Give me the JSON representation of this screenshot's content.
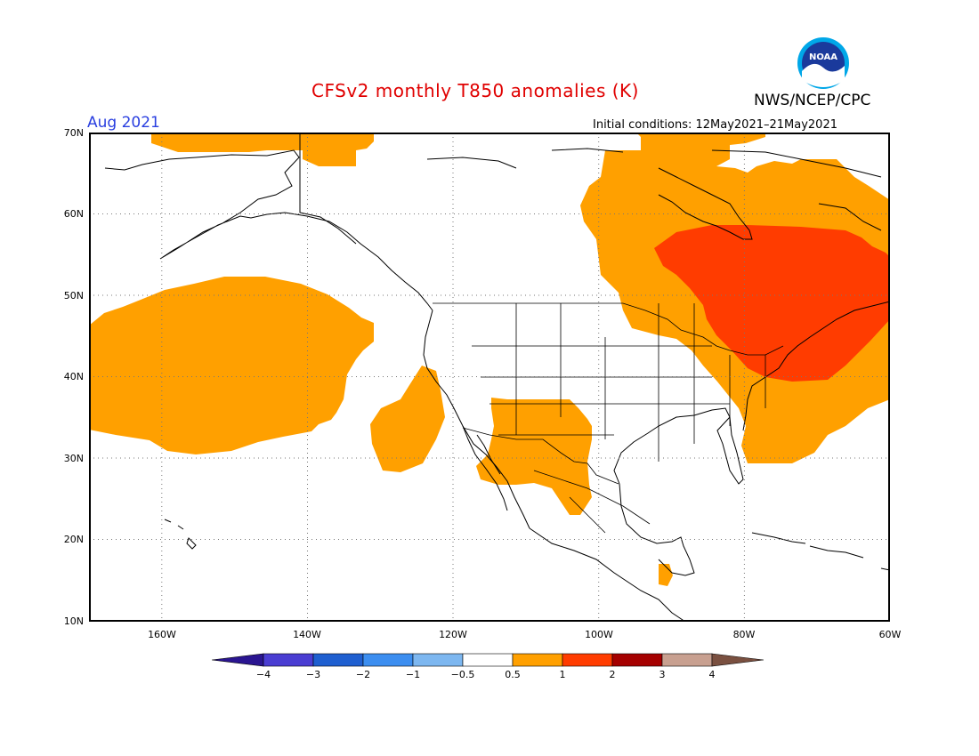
{
  "title": "CFSv2 monthly T850 anomalies (K)",
  "month_label": "Aug 2021",
  "initial_conditions": "Initial conditions: 12May2021–21May2021",
  "agency": "NWS/NCEP/CPC",
  "logo_text": "NOAA",
  "map": {
    "projection": "cylindrical",
    "lon_range": [
      -170,
      -60
    ],
    "lat_range": [
      10,
      70
    ],
    "grid": true,
    "lat_ticks": [
      "70N",
      "60N",
      "50N",
      "40N",
      "30N",
      "20N",
      "10N"
    ],
    "lon_ticks": [
      "160W",
      "140W",
      "120W",
      "100W",
      "80W",
      "60W"
    ]
  },
  "colorbar": {
    "labels": [
      "−4",
      "−3",
      "−2",
      "−1",
      "−0.5",
      "0.5",
      "1",
      "2",
      "3",
      "4"
    ],
    "colors": [
      "#2a1591",
      "#4a3dd2",
      "#1f5fd0",
      "#3c8ef0",
      "#7db7f0",
      "#ffffff",
      "#ffa000",
      "#ff3c00",
      "#a50000",
      "#c8a090",
      "#7a5040"
    ]
  },
  "anomaly_regions": [
    {
      "name": "north-pacific-warm",
      "category": "0.5 to 1",
      "color": "#ffa000"
    },
    {
      "name": "alaska-north-warm",
      "category": "0.5 to 1",
      "color": "#ffa000"
    },
    {
      "name": "baja-california-warm",
      "category": "0.5 to 1",
      "color": "#ffa000"
    },
    {
      "name": "southwest-us-mexico-warm",
      "category": "0.5 to 1",
      "color": "#ffa000"
    },
    {
      "name": "eastern-canada-northeast-us-warm",
      "category": "0.5 to 1",
      "color": "#ffa000"
    },
    {
      "name": "great-lakes-quebec-hot",
      "category": "1 to 2",
      "color": "#ff3c00"
    },
    {
      "name": "central-america-warm",
      "category": "0.5 to 1",
      "color": "#ffa000"
    }
  ]
}
